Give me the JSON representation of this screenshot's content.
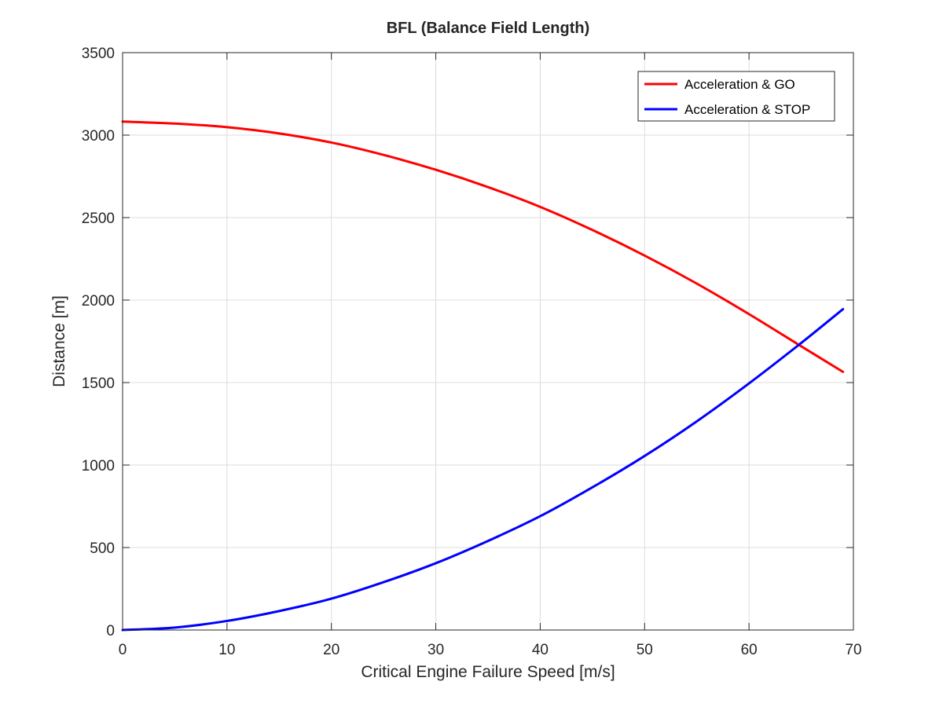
{
  "chart_data": {
    "type": "line",
    "title": "BFL (Balance Field Length)",
    "xlabel": "Critical Engine Failure Speed [m/s]",
    "ylabel": "Distance [m]",
    "xlim": [
      0,
      70
    ],
    "ylim": [
      0,
      3500
    ],
    "xticks": [
      0,
      10,
      20,
      30,
      40,
      50,
      60,
      70
    ],
    "yticks": [
      0,
      500,
      1000,
      1500,
      2000,
      2500,
      3000,
      3500
    ],
    "grid": true,
    "legend_position": "top-right",
    "series": [
      {
        "name": "Acceleration & GO",
        "color": "#ff0000",
        "x": [
          0,
          5,
          10,
          15,
          20,
          25,
          30,
          35,
          40,
          45,
          50,
          55,
          60,
          65,
          69
        ],
        "y": [
          3082,
          3070,
          3048,
          3010,
          2955,
          2880,
          2790,
          2685,
          2565,
          2425,
          2270,
          2100,
          1915,
          1720,
          1565
        ]
      },
      {
        "name": "Acceleration & STOP",
        "color": "#0000ff",
        "x": [
          0,
          5,
          10,
          15,
          20,
          25,
          30,
          35,
          40,
          45,
          50,
          55,
          60,
          65,
          69
        ],
        "y": [
          0,
          15,
          55,
          115,
          190,
          290,
          405,
          540,
          690,
          865,
          1055,
          1265,
          1495,
          1740,
          1945
        ]
      }
    ]
  }
}
